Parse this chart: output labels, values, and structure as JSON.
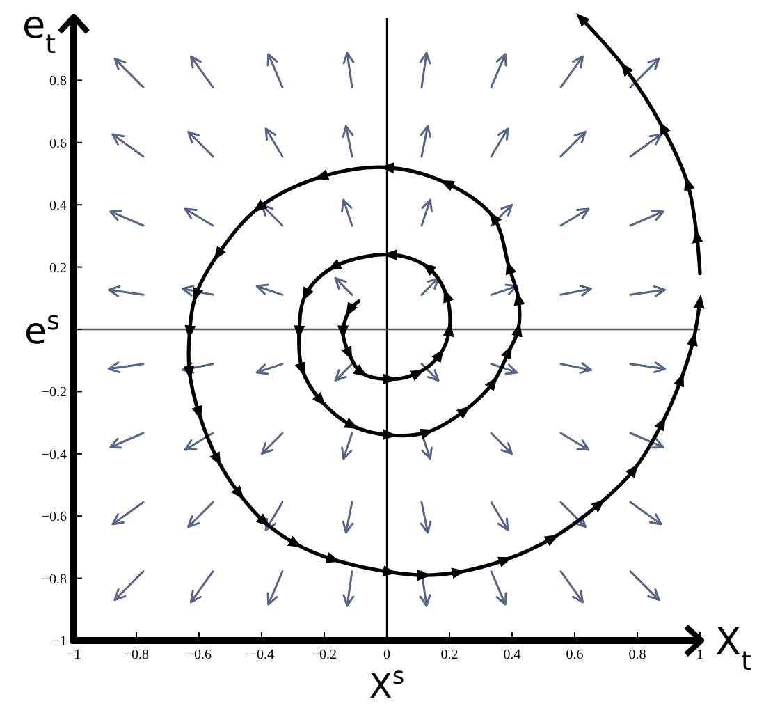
{
  "chart_data": {
    "type": "line",
    "xlabel": "X$^{s}$",
    "ylabel": "e$^{s}$",
    "annotations": [
      "e$_{t}$",
      "X$_{t}$"
    ],
    "series": [
      {
        "color": "#000000",
        "x": [
          -0.09,
          -0.12,
          -0.14,
          -0.12,
          -0.08,
          0.01,
          0.1,
          0.17,
          0.2,
          0.19,
          0.13,
          0.01,
          -0.17,
          -0.26,
          -0.28,
          -0.27,
          -0.21,
          -0.11,
          0.01,
          0.13,
          0.25,
          0.34,
          0.39,
          0.42,
          0.42,
          0.39,
          0.34,
          0.19,
          0.0,
          -0.21,
          -0.41,
          -0.54,
          -0.61,
          -0.63,
          -0.63,
          -0.6,
          -0.54,
          -0.47,
          -0.39,
          -0.29,
          -0.17,
          0.01,
          0.12,
          0.23,
          0.38,
          0.53,
          0.68,
          0.79,
          0.88,
          0.94,
          0.98,
          1.0
        ],
        "values": [
          0.09,
          0.06,
          -0.01,
          -0.08,
          -0.14,
          -0.16,
          -0.14,
          -0.08,
          0.0,
          0.11,
          0.2,
          0.24,
          0.2,
          0.11,
          -0.01,
          -0.13,
          -0.23,
          -0.31,
          -0.34,
          -0.33,
          -0.26,
          -0.17,
          -0.07,
          0.0,
          0.1,
          0.2,
          0.36,
          0.47,
          0.52,
          0.49,
          0.39,
          0.24,
          0.11,
          -0.01,
          -0.14,
          -0.27,
          -0.42,
          -0.53,
          -0.62,
          -0.69,
          -0.74,
          -0.78,
          -0.79,
          -0.78,
          -0.74,
          -0.67,
          -0.56,
          -0.45,
          -0.3,
          -0.16,
          -0.03,
          0.09
        ]
      },
      {
        "color": "#000000",
        "x": [
          1.0,
          0.99,
          0.96,
          0.88,
          0.76,
          0.62
        ],
        "values": [
          0.18,
          0.3,
          0.47,
          0.65,
          0.84,
          1.0
        ]
      }
    ],
    "xlim": [
      -1,
      1
    ],
    "ylim": [
      -1,
      1
    ],
    "xticks": [
      -1,
      -0.8,
      -0.6,
      -0.4,
      -0.2,
      0,
      0.2,
      0.4,
      0.6,
      0.8,
      1
    ],
    "yticks": [
      -1,
      -0.8,
      -0.6,
      -0.4,
      -0.2,
      {
        "value": 0,
        "label": null
      },
      0.2,
      0.4,
      0.6,
      0.8
    ],
    "ref_lines": [
      {
        "axis": "x",
        "value": 0,
        "color": "#000000"
      },
      {
        "axis": "y",
        "value": 0,
        "color": "#555555"
      }
    ]
  }
}
